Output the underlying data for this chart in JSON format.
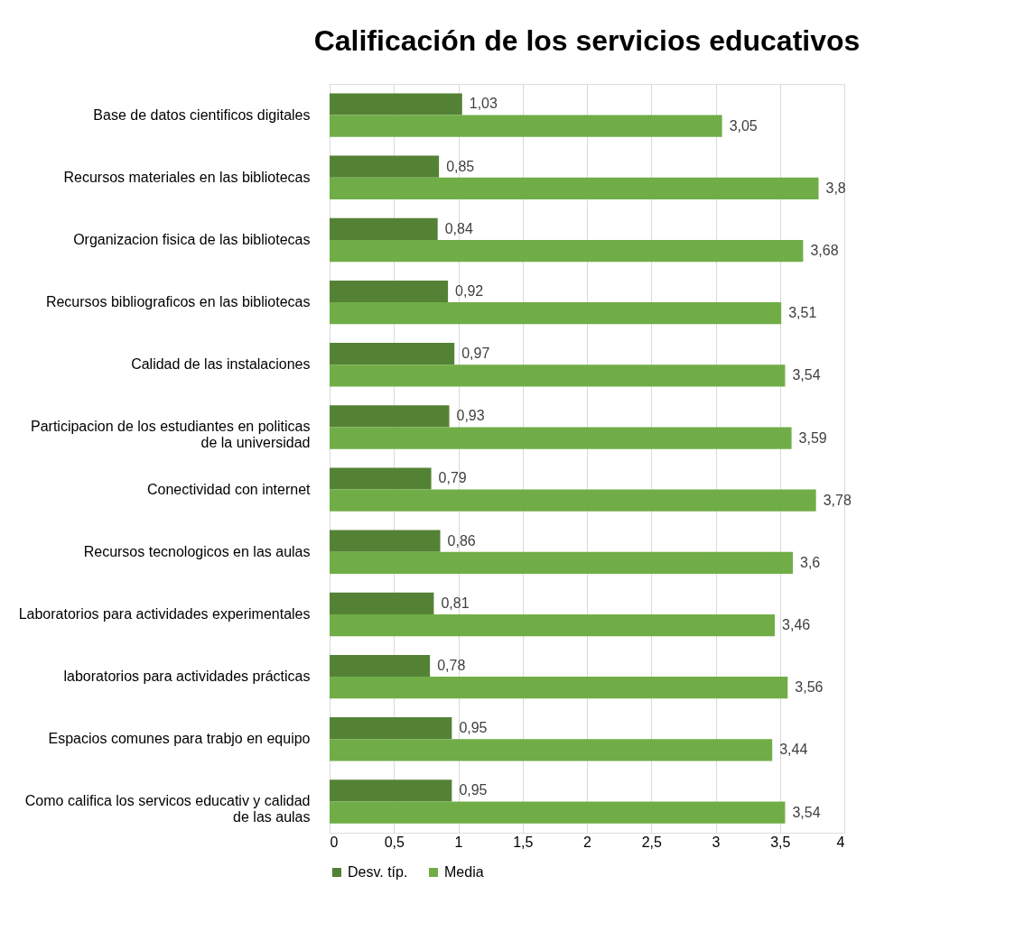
{
  "chart_data": {
    "type": "bar",
    "orientation": "horizontal",
    "title": "Calificación de los servicios educativos",
    "categories": [
      "Base de datos cientificos digitales",
      "Recursos materiales en las bibliotecas",
      "Organizacion fisica de las bibliotecas",
      "Recursos bibliograficos en las bibliotecas",
      "Calidad de las instalaciones",
      "Participacion de los estudiantes en politicas de la universidad",
      "Conectividad con internet",
      "Recursos tecnologicos en las aulas",
      "Laboratorios para actividades experimentales",
      "laboratorios para actividades prácticas",
      "Espacios comunes para trabjo en equipo",
      "Como califica los servicos educativ y calidad de las aulas"
    ],
    "series": [
      {
        "name": "Desv. típ.",
        "color": "#548235",
        "values": [
          1.03,
          0.85,
          0.84,
          0.92,
          0.97,
          0.93,
          0.79,
          0.86,
          0.81,
          0.78,
          0.95,
          0.95
        ],
        "value_labels": [
          "1,03",
          "0,85",
          "0,84",
          "0,92",
          "0,97",
          "0,93",
          "0,79",
          "0,86",
          "0,81",
          "0,78",
          "0,95",
          "0,95"
        ]
      },
      {
        "name": "Media",
        "color": "#70ad47",
        "values": [
          3.05,
          3.8,
          3.68,
          3.51,
          3.54,
          3.59,
          3.78,
          3.6,
          3.46,
          3.56,
          3.44,
          3.54
        ],
        "value_labels": [
          "3,05",
          "3,8",
          "3,68",
          "3,51",
          "3,54",
          "3,59",
          "3,78",
          "3,6",
          "3,46",
          "3,56",
          "3,44",
          "3,54"
        ]
      }
    ],
    "xlim": [
      0,
      4
    ],
    "xticks": [
      0,
      {
        "value": 0.5,
        "label": "0,5"
      },
      1,
      {
        "value": 1.5,
        "label": "1,5"
      },
      2,
      {
        "value": 2.5,
        "label": "2,5"
      },
      3,
      {
        "value": 3.5,
        "label": "3,5"
      },
      4
    ],
    "grid": "x",
    "legend": "bottom"
  }
}
